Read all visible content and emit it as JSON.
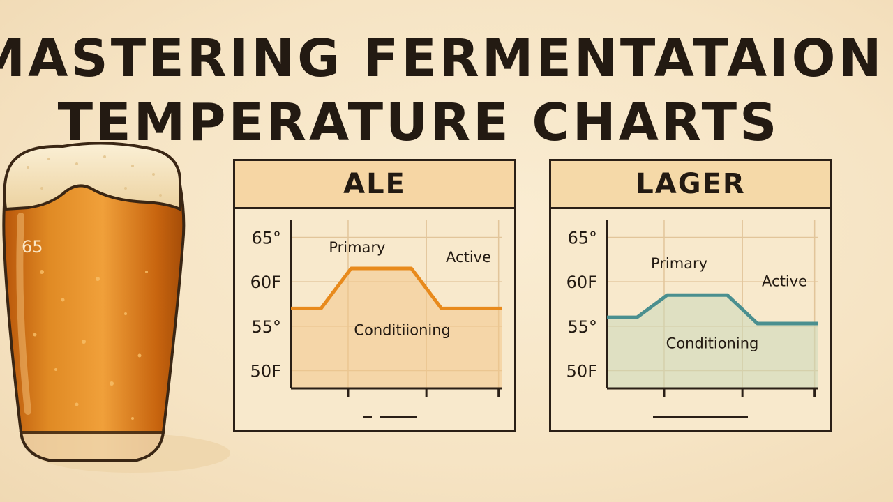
{
  "title": {
    "line1": "MASTERING FERMENTATAION",
    "line2": "TEMPERATURE CHARTS"
  },
  "glass": {
    "label": "65"
  },
  "colors": {
    "ale": "#e88a1c",
    "lager": "#4a8f8f",
    "ink": "#231a12"
  },
  "chart_data": [
    {
      "type": "line",
      "title": "ALE",
      "y_ticks": [
        "65°",
        "60F",
        "55°",
        "50F"
      ],
      "y_tick_values": [
        65,
        60,
        55,
        50
      ],
      "ylim": [
        48,
        67
      ],
      "x": [
        0,
        1,
        2,
        3,
        4,
        5,
        6,
        7
      ],
      "series": [
        {
          "values": [
            57,
            57,
            61.5,
            61.5,
            61.5,
            57,
            57,
            57
          ]
        }
      ],
      "annotations": [
        {
          "text": "Primary",
          "x": 2.2,
          "y": 63.3
        },
        {
          "text": "Active",
          "x": 5.9,
          "y": 62.2
        },
        {
          "text": "Conditiioning",
          "x": 3.7,
          "y": 54
        }
      ],
      "grid": true
    },
    {
      "type": "line",
      "title": "LAGER",
      "y_ticks": [
        "65°",
        "60F",
        "55°",
        "50F"
      ],
      "y_tick_values": [
        65,
        60,
        55,
        50
      ],
      "ylim": [
        48,
        67
      ],
      "x": [
        0,
        1,
        2,
        3,
        4,
        5,
        6,
        7
      ],
      "series": [
        {
          "values": [
            56,
            56,
            58.5,
            58.5,
            58.5,
            55.3,
            55.3,
            55.3
          ]
        }
      ],
      "annotations": [
        {
          "text": "Primary",
          "x": 2.4,
          "y": 61.5
        },
        {
          "text": "Active",
          "x": 5.9,
          "y": 59.5
        },
        {
          "text": "Conditioning",
          "x": 3.5,
          "y": 52.5
        }
      ],
      "grid": true
    }
  ]
}
